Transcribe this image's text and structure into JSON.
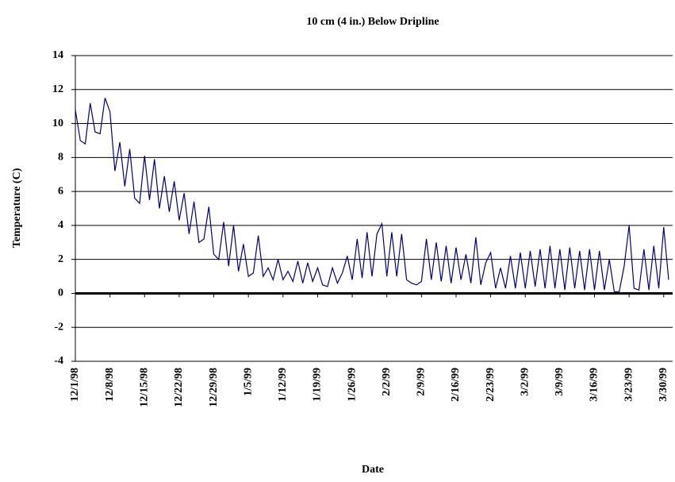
{
  "chart_data": {
    "type": "line",
    "title": "10 cm (4 in.) Below Dripline",
    "xlabel": "Date",
    "ylabel": "Temperature (C)",
    "x": [
      "12/1/98",
      "12/2/98",
      "12/3/98",
      "12/4/98",
      "12/5/98",
      "12/6/98",
      "12/7/98",
      "12/8/98",
      "12/9/98",
      "12/10/98",
      "12/11/98",
      "12/12/98",
      "12/13/98",
      "12/14/98",
      "12/15/98",
      "12/16/98",
      "12/17/98",
      "12/18/98",
      "12/19/98",
      "12/20/98",
      "12/21/98",
      "12/22/98",
      "12/23/98",
      "12/24/98",
      "12/25/98",
      "12/26/98",
      "12/27/98",
      "12/28/98",
      "12/29/98",
      "12/30/98",
      "12/31/98",
      "1/1/99",
      "1/2/99",
      "1/3/99",
      "1/4/99",
      "1/5/99",
      "1/6/99",
      "1/7/99",
      "1/8/99",
      "1/9/99",
      "1/10/99",
      "1/11/99",
      "1/12/99",
      "1/13/99",
      "1/14/99",
      "1/15/99",
      "1/16/99",
      "1/17/99",
      "1/18/99",
      "1/19/99",
      "1/20/99",
      "1/21/99",
      "1/22/99",
      "1/23/99",
      "1/24/99",
      "1/25/99",
      "1/26/99",
      "1/27/99",
      "1/28/99",
      "1/29/99",
      "1/30/99",
      "1/31/99",
      "2/1/99",
      "2/2/99",
      "2/3/99",
      "2/4/99",
      "2/5/99",
      "2/6/99",
      "2/7/99",
      "2/8/99",
      "2/9/99",
      "2/10/99",
      "2/11/99",
      "2/12/99",
      "2/13/99",
      "2/14/99",
      "2/15/99",
      "2/16/99",
      "2/17/99",
      "2/18/99",
      "2/19/99",
      "2/20/99",
      "2/21/99",
      "2/22/99",
      "2/23/99",
      "2/24/99",
      "2/25/99",
      "2/26/99",
      "2/27/99",
      "2/28/99",
      "3/1/99",
      "3/2/99",
      "3/3/99",
      "3/4/99",
      "3/5/99",
      "3/6/99",
      "3/7/99",
      "3/8/99",
      "3/9/99",
      "3/10/99",
      "3/11/99",
      "3/12/99",
      "3/13/99",
      "3/14/99",
      "3/15/99",
      "3/16/99",
      "3/17/99",
      "3/18/99",
      "3/19/99",
      "3/20/99",
      "3/21/99",
      "3/22/99",
      "3/23/99",
      "3/24/99",
      "3/25/99",
      "3/26/99",
      "3/27/99",
      "3/28/99",
      "3/29/99",
      "3/30/99",
      "3/31/99"
    ],
    "series": [
      {
        "name": "10 cm",
        "color": "#000080",
        "values": [
          10.8,
          9,
          8.8,
          11.2,
          9.5,
          9.4,
          11.5,
          10.7,
          7.2,
          8.9,
          6.3,
          8.5,
          5.6,
          5.3,
          8.1,
          5.5,
          7.9,
          5.0,
          6.9,
          4.8,
          6.6,
          4.3,
          5.9,
          3.5,
          5.4,
          3.0,
          3.2,
          5.1,
          2.3,
          2.0,
          4.2,
          1.6,
          4.0,
          1.3,
          2.9,
          1.0,
          1.2,
          3.4,
          1.0,
          1.5,
          0.8,
          2.0,
          0.8,
          1.3,
          0.7,
          1.9,
          0.6,
          1.8,
          0.7,
          1.5,
          0.5,
          0.4,
          1.5,
          0.6,
          1.2,
          2.2,
          0.8,
          3.2,
          0.9,
          3.6,
          1.0,
          3.5,
          4.1,
          1.0,
          3.6,
          1.0,
          3.5,
          0.8,
          0.6,
          0.5,
          0.7,
          3.2,
          0.8,
          3.0,
          0.7,
          2.8,
          0.6,
          2.7,
          0.8,
          2.3,
          0.6,
          3.3,
          0.5,
          1.8,
          2.4,
          0.3,
          1.5,
          0.3,
          2.2,
          0.3,
          2.4,
          0.3,
          2.5,
          0.4,
          2.6,
          0.3,
          2.8,
          0.3,
          2.6,
          0.2,
          2.7,
          0.3,
          2.5,
          0.2,
          2.6,
          0.2,
          2.5,
          0.2,
          2.0,
          0.1,
          0.1,
          1.6,
          4.0,
          0.3,
          0.2,
          2.6,
          0.2,
          2.8,
          0.3,
          3.9,
          0.8
        ]
      }
    ],
    "xticks": [
      "12/1/98",
      "12/8/98",
      "12/15/98",
      "12/22/98",
      "12/29/98",
      "1/5/99",
      "1/12/99",
      "1/19/99",
      "1/26/99",
      "2/2/99",
      "2/9/99",
      "2/16/99",
      "2/23/99",
      "3/2/99",
      "3/9/99",
      "3/16/99",
      "3/23/99",
      "3/30/99"
    ],
    "ylim": [
      -4,
      14
    ],
    "yticks": [
      -4,
      -2,
      0,
      2,
      4,
      6,
      8,
      10,
      12,
      14
    ],
    "grid": true
  }
}
